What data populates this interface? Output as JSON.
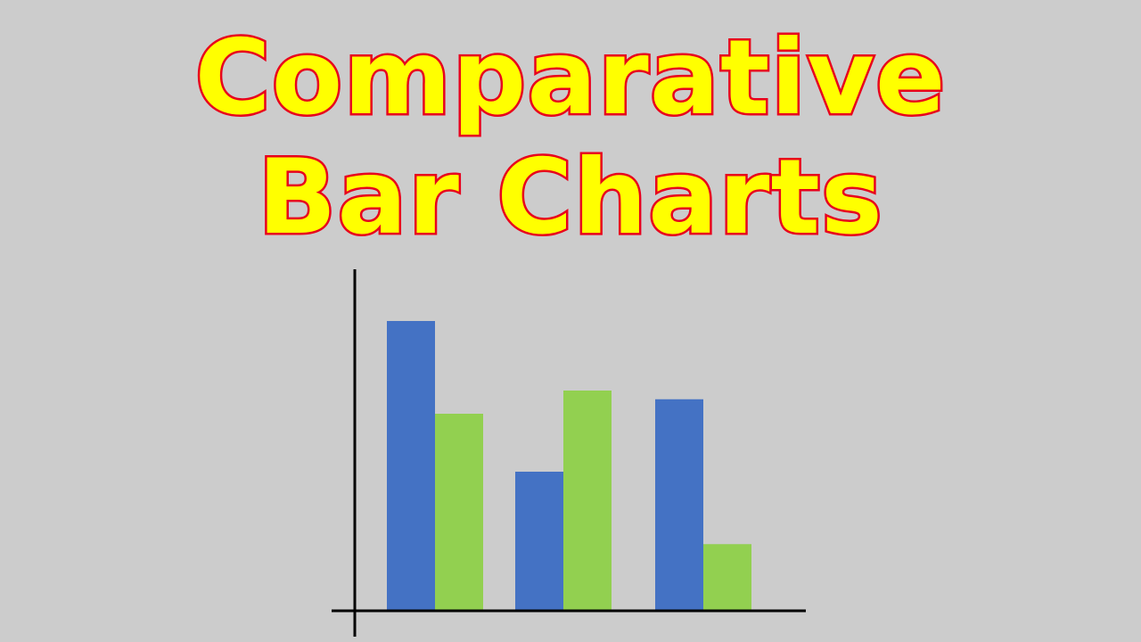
{
  "title": {
    "line1": "Comparative",
    "line2": "Bar Charts"
  },
  "colors": {
    "background": "#cccccc",
    "title_fill": "#ffff00",
    "title_outline": "#e8001c",
    "axis": "#000000",
    "series_1": "#4472c4",
    "series_2": "#92d050"
  },
  "chart_data": {
    "type": "bar",
    "title": "Comparative Bar Charts",
    "categories": [
      "",
      "",
      ""
    ],
    "series": [
      {
        "values": [
          10,
          4.8,
          7.3
        ]
      },
      {
        "values": [
          6.8,
          7.6,
          2.3
        ]
      }
    ],
    "ylim": [
      0,
      12
    ],
    "grid": false,
    "legend": "none",
    "xlabel": "",
    "ylabel": ""
  }
}
